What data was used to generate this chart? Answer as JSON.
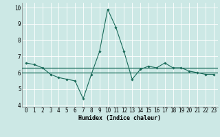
{
  "x": [
    0,
    1,
    2,
    3,
    4,
    5,
    6,
    7,
    8,
    9,
    10,
    11,
    12,
    13,
    14,
    15,
    16,
    17,
    18,
    19,
    20,
    21,
    22,
    23
  ],
  "y": [
    6.6,
    6.5,
    6.3,
    5.9,
    5.7,
    5.6,
    5.5,
    4.4,
    5.9,
    7.3,
    9.9,
    8.8,
    7.3,
    5.6,
    6.2,
    6.4,
    6.3,
    6.6,
    6.3,
    6.3,
    6.1,
    6.0,
    5.9,
    5.9
  ],
  "line_color": "#1a6b5a",
  "marker": "D",
  "marker_size": 1.8,
  "hline1_y": 6.3,
  "hline2_y": 6.0,
  "hline_color": "#1a6b5a",
  "xlabel": "Humidex (Indice chaleur)",
  "bg_color": "#cce8e5",
  "grid_color": "#ffffff",
  "ylim": [
    3.9,
    10.3
  ],
  "xlim": [
    -0.5,
    23.5
  ],
  "yticks": [
    4,
    5,
    6,
    7,
    8,
    9,
    10
  ],
  "xticks": [
    0,
    1,
    2,
    3,
    4,
    5,
    6,
    7,
    8,
    9,
    10,
    11,
    12,
    13,
    14,
    15,
    16,
    17,
    18,
    19,
    20,
    21,
    22,
    23
  ],
  "xlabel_fontsize": 6.0,
  "tick_fontsize": 5.5,
  "linewidth": 0.8
}
